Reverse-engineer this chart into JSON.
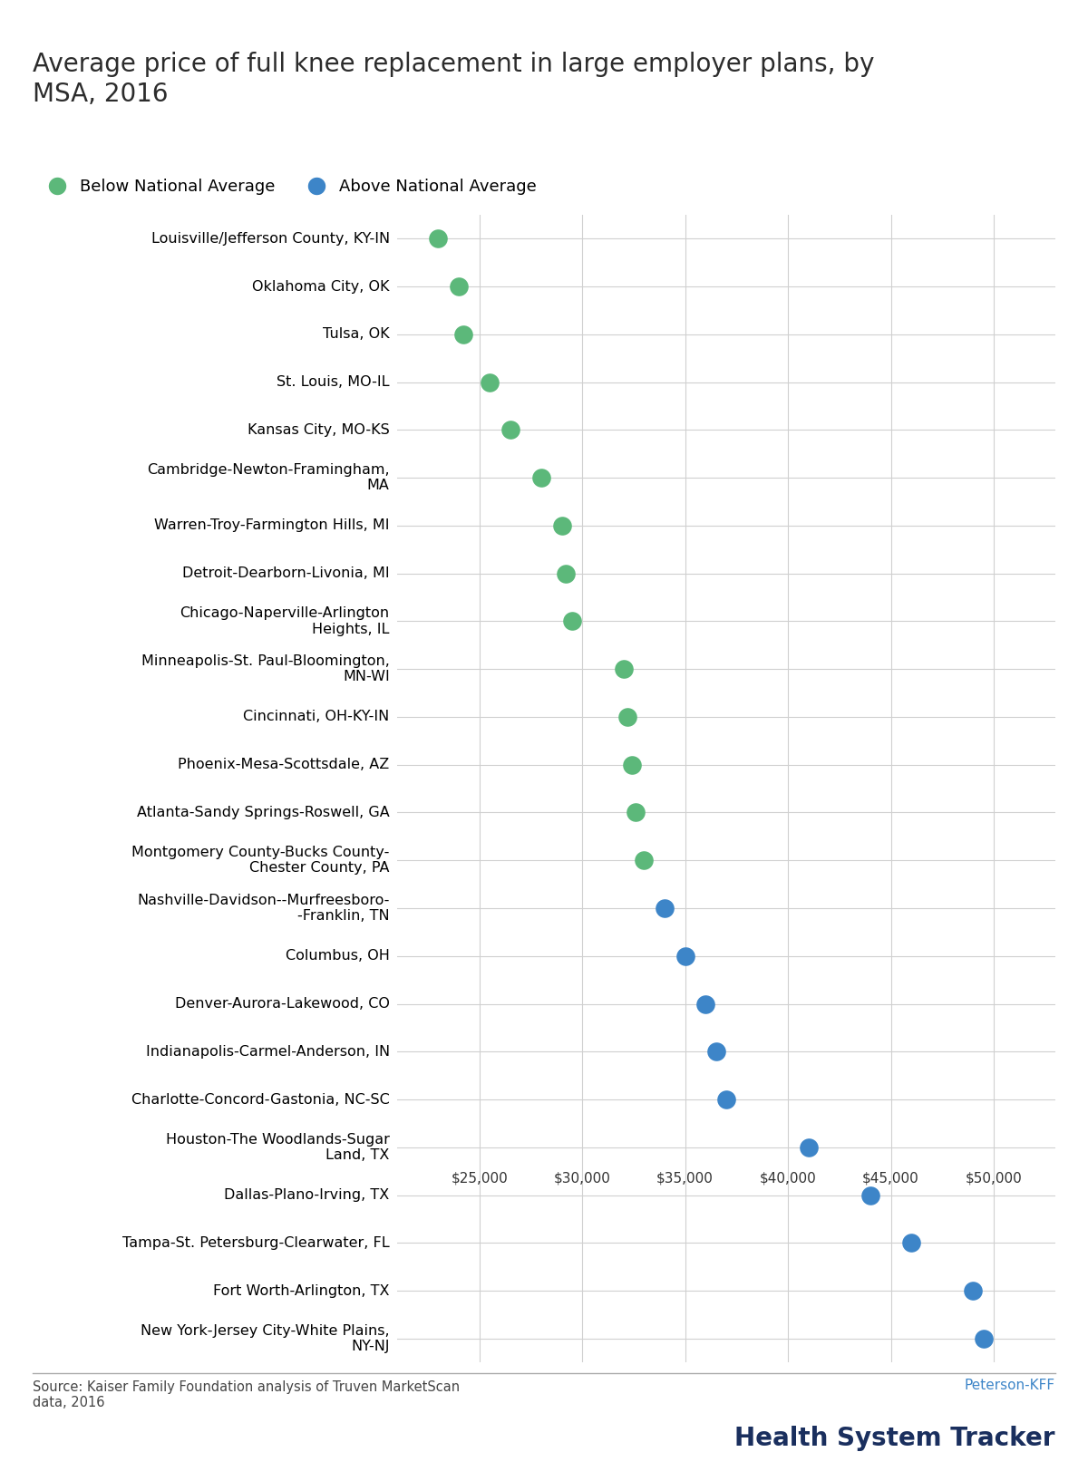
{
  "title": "Average price of full knee replacement in large employer plans, by\nMSA, 2016",
  "categories": [
    "Louisville/Jefferson County, KY-IN",
    "Oklahoma City, OK",
    "Tulsa, OK",
    "St. Louis, MO-IL",
    "Kansas City, MO-KS",
    "Cambridge-Newton-Framingham,\nMA",
    "Warren-Troy-Farmington Hills, MI",
    "Detroit-Dearborn-Livonia, MI",
    "Chicago-Naperville-Arlington\nHeights, IL",
    "Minneapolis-St. Paul-Bloomington,\nMN-WI",
    "Cincinnati, OH-KY-IN",
    "Phoenix-Mesa-Scottsdale, AZ",
    "Atlanta-Sandy Springs-Roswell, GA",
    "Montgomery County-Bucks County-\nChester County, PA",
    "Nashville-Davidson--Murfreesboro-\n-Franklin, TN",
    "Columbus, OH",
    "Denver-Aurora-Lakewood, CO",
    "Indianapolis-Carmel-Anderson, IN",
    "Charlotte-Concord-Gastonia, NC-SC",
    "Houston-The Woodlands-Sugar\nLand, TX",
    "Dallas-Plano-Irving, TX",
    "Tampa-St. Petersburg-Clearwater, FL",
    "Fort Worth-Arlington, TX",
    "New York-Jersey City-White Plains,\nNY-NJ"
  ],
  "values": [
    23000,
    24000,
    24200,
    25500,
    26500,
    28000,
    29000,
    29200,
    29500,
    32000,
    32200,
    32400,
    32600,
    33000,
    34000,
    35000,
    36000,
    36500,
    37000,
    41000,
    44000,
    46000,
    49000,
    49500
  ],
  "colors": [
    "#5cb87a",
    "#5cb87a",
    "#5cb87a",
    "#5cb87a",
    "#5cb87a",
    "#5cb87a",
    "#5cb87a",
    "#5cb87a",
    "#5cb87a",
    "#5cb87a",
    "#5cb87a",
    "#5cb87a",
    "#5cb87a",
    "#5cb87a",
    "#3d85c8",
    "#3d85c8",
    "#3d85c8",
    "#3d85c8",
    "#3d85c8",
    "#3d85c8",
    "#3d85c8",
    "#3d85c8",
    "#3d85c8",
    "#3d85c8"
  ],
  "green_color": "#5cb87a",
  "blue_color": "#3d85c8",
  "legend_below": "Below National Average",
  "legend_above": "Above National Average",
  "source_text": "Source: Kaiser Family Foundation analysis of Truven MarketScan\ndata, 2016",
  "logo_text1": "Peterson-KFF",
  "logo_text2": "Health System Tracker",
  "xlim": [
    21000,
    53000
  ],
  "xticks": [
    25000,
    30000,
    35000,
    40000,
    45000,
    50000
  ],
  "background_color": "#ffffff",
  "grid_color": "#d0d0d0",
  "xaxis_row": 19
}
